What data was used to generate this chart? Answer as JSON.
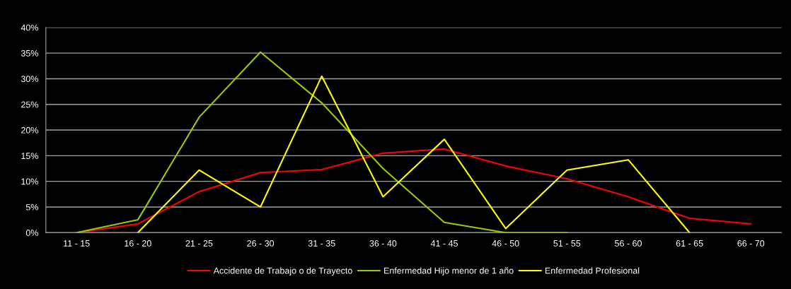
{
  "chart_data": {
    "type": "line",
    "categories": [
      "11 - 15",
      "16 - 20",
      "21 - 25",
      "26 - 30",
      "31 - 35",
      "36 - 40",
      "41 - 45",
      "46 - 50",
      "51 - 55",
      "56 - 60",
      "61 - 65",
      "66 - 70"
    ],
    "series": [
      {
        "name": "Accidente de Trabajo o de Trayecto",
        "color": "#ff0000",
        "values": [
          0,
          1.7,
          8,
          11.7,
          12.3,
          15.5,
          16.3,
          13,
          10.5,
          7,
          2.8,
          1.7
        ]
      },
      {
        "name": "Enfermedad Hijo menor de 1 año",
        "color": "#99cc00",
        "values": [
          0,
          2.5,
          22.5,
          35.2,
          25.3,
          12.5,
          2,
          0,
          0,
          null,
          null,
          null
        ]
      },
      {
        "name": "Enfermedad Profesional",
        "color": "#ffff00",
        "values": [
          null,
          0,
          12.2,
          5,
          30.5,
          7,
          18.2,
          0.8,
          12.2,
          14.2,
          0,
          null
        ]
      }
    ],
    "ylim": [
      0,
      40
    ],
    "yticks": [
      {
        "value": 0,
        "label": "0%"
      },
      {
        "value": 5,
        "label": "5%"
      },
      {
        "value": 10,
        "label": "10%"
      },
      {
        "value": 15,
        "label": "15%"
      },
      {
        "value": 20,
        "label": "20%"
      },
      {
        "value": 25,
        "label": "25%"
      },
      {
        "value": 30,
        "label": "30%"
      },
      {
        "value": 35,
        "label": "35%"
      },
      {
        "value": 40,
        "label": "40%"
      }
    ],
    "grid": "y",
    "legend": "bottom",
    "marker": "none",
    "line_style": "solid"
  }
}
